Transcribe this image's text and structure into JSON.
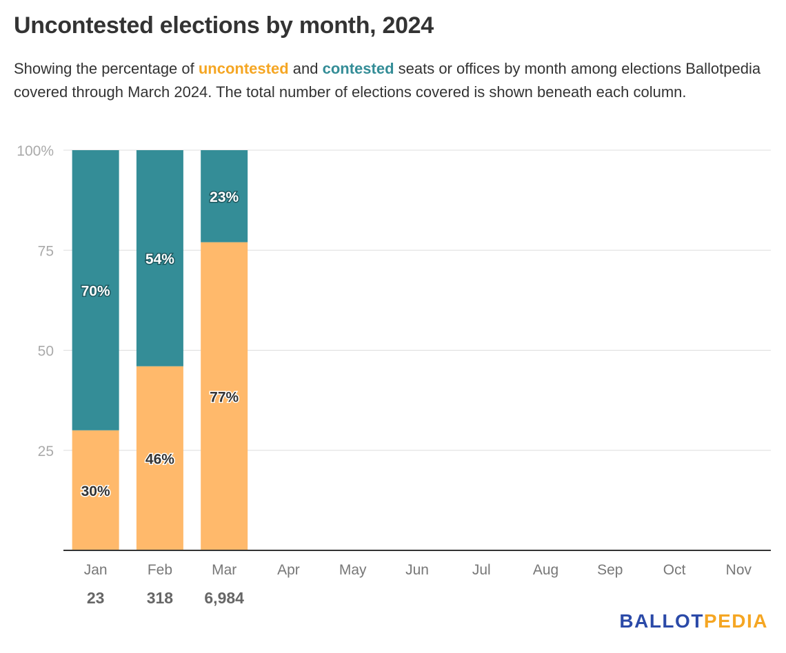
{
  "title": "Uncontested elections by month, 2024",
  "subtitle": {
    "before": "Showing the percentage of ",
    "uncontested_word": "uncontested",
    "middle": " and ",
    "contested_word": "contested",
    "after": " seats or offices by month among elections Ballotpedia covered through March 2024. The total number of elections covered is shown beneath each column."
  },
  "logo": {
    "part1": "BALLOT",
    "part2": "PEDIA"
  },
  "colors": {
    "uncontested": "#ffb96b",
    "contested": "#348d97",
    "uncontested_text": "#f5a623"
  },
  "chart_data": {
    "type": "bar",
    "stacked": true,
    "categories": [
      "Jan",
      "Feb",
      "Mar",
      "Apr",
      "May",
      "Jun",
      "Jul",
      "Aug",
      "Sep",
      "Oct",
      "Nov"
    ],
    "series": [
      {
        "name": "uncontested",
        "values": [
          30,
          46,
          77,
          null,
          null,
          null,
          null,
          null,
          null,
          null,
          null
        ]
      },
      {
        "name": "contested",
        "values": [
          70,
          54,
          23,
          null,
          null,
          null,
          null,
          null,
          null,
          null,
          null
        ]
      }
    ],
    "segment_labels": {
      "uncontested": [
        "30%",
        "46%",
        "77%"
      ],
      "contested": [
        "70%",
        "54%",
        "23%"
      ]
    },
    "totals": [
      "23",
      "318",
      "6,984"
    ],
    "ylim": [
      0,
      100
    ],
    "yticks": [
      {
        "value": 25,
        "label": "25"
      },
      {
        "value": 50,
        "label": "50"
      },
      {
        "value": 75,
        "label": "75"
      },
      {
        "value": 100,
        "label": "100%"
      }
    ],
    "grid": true,
    "legend": "none"
  }
}
